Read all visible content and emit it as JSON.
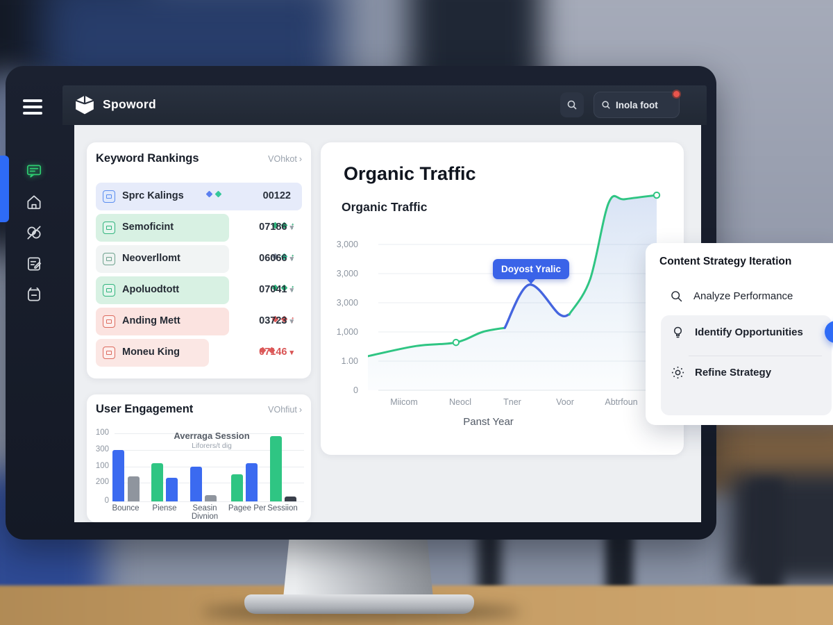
{
  "colors": {
    "accent_blue": "#2e6bf6",
    "green": "#2fc583",
    "line_highlight": "#4565df",
    "tooltip_bg": "#3a63e8",
    "red": "#de5b5b",
    "navbar": "#242b38"
  },
  "topbar": {
    "brand": "Spoword",
    "search_icon": "search-icon",
    "search_value": "Inola foot"
  },
  "sidebar": {
    "icons": [
      "chat-icon",
      "home-icon",
      "link-slash-icon",
      "document-edit-icon",
      "alarm-doc-icon"
    ]
  },
  "keyword_rankings": {
    "title": "Keyword Rankings",
    "link": "VOhkot",
    "chevron": "›",
    "rows": [
      {
        "label": "Sprc Kalings",
        "value": "00122",
        "caret": ""
      },
      {
        "label": "Semoficint",
        "value": "07186",
        "caret": "▾"
      },
      {
        "label": "Neoverllomt",
        "value": "06066",
        "caret": "▾"
      },
      {
        "label": "Apoluodtott",
        "value": "07041",
        "caret": "▾"
      },
      {
        "label": "Anding Mett",
        "value": "03723",
        "caret": "▾"
      },
      {
        "label": "Moneu King",
        "value": "07146",
        "caret": "▾"
      }
    ]
  },
  "organic": {
    "title": "Organic Traffic",
    "subtitle": "Organic Traffic",
    "tooltip": "Doyost Yralic",
    "y_ticks": [
      "3,000",
      "3,000",
      "3,000",
      "1,000",
      "1.00",
      "0"
    ],
    "x_ticks": [
      "Miicom",
      "Neocl",
      "Tner",
      "Voor",
      "Abtrfoun"
    ],
    "xlabel": "Panst Year"
  },
  "engagement": {
    "title": "User Engagement",
    "link": "VOhfiut",
    "chevron": "›",
    "annotation_line1": "Averraga Session",
    "annotation_line2": "Liforers/t dig",
    "y_ticks": [
      "100",
      "300",
      "100",
      "200",
      "0"
    ],
    "x_labels": [
      "Bounce",
      "Piense",
      "Seasin\nDivnion",
      "Pagee Per",
      "Sessiion"
    ]
  },
  "strategy": {
    "title": "Content Strategy Iteration",
    "items": [
      {
        "icon": "search-icon",
        "label": "Analyze Performance"
      },
      {
        "icon": "lightbulb-icon",
        "label": "Identify Opportunities"
      },
      {
        "icon": "sun-settings-icon",
        "label": "Refine Strategy"
      }
    ]
  },
  "chart_data": [
    {
      "type": "line",
      "title": "Organic Traffic",
      "xlabel": "Panst Year",
      "x_tick_labels": [
        "Miicom",
        "Neocl",
        "Tner",
        "Voor",
        "Abtrfoun"
      ],
      "y_tick_labels": [
        "0",
        "1.00",
        "1,000",
        "3,000",
        "3,000",
        "3,000"
      ],
      "ylim": [
        0,
        7
      ],
      "grid": true,
      "tooltip_label": "Doyost Yralic",
      "points": [
        [
          0,
          1.17
        ],
        [
          1.68,
          1.52
        ],
        [
          3.05,
          1.64
        ],
        [
          3.97,
          2.0
        ],
        [
          4.74,
          2.14
        ],
        [
          5.58,
          3.62
        ],
        [
          6.61,
          2.62
        ],
        [
          6.97,
          2.6
        ],
        [
          7.69,
          3.79
        ],
        [
          8.34,
          6.43
        ],
        [
          8.89,
          6.55
        ],
        [
          10,
          6.69
        ]
      ],
      "highlight_segment": [
        4,
        7
      ],
      "markers": [
        2,
        11
      ],
      "line_color": "#2fc583",
      "highlight_color": "#4565df"
    },
    {
      "type": "bar",
      "title": "User Engagement",
      "ylim": [
        0,
        400
      ],
      "y_tick_labels": [
        "0",
        "200",
        "100",
        "300",
        "100"
      ],
      "groups": [
        {
          "label": "Bounce",
          "bars": [
            {
              "v": 300,
              "c": "#3b6af0"
            },
            {
              "v": 145,
              "c": "#8f959e"
            }
          ]
        },
        {
          "label": "Piense",
          "bars": [
            {
              "v": 225,
              "c": "#2fc583"
            },
            {
              "v": 140,
              "c": "#3b6af0"
            }
          ]
        },
        {
          "label": "Seasin Divnion",
          "bars": [
            {
              "v": 205,
              "c": "#3b6af0"
            },
            {
              "v": 35,
              "c": "#8f959e"
            }
          ]
        },
        {
          "label": "Pagee Per",
          "bars": [
            {
              "v": 160,
              "c": "#2fc583"
            },
            {
              "v": 225,
              "c": "#3b6af0"
            }
          ]
        },
        {
          "label": "Sessiion",
          "bars": [
            {
              "v": 385,
              "c": "#2fc583"
            },
            {
              "v": 30,
              "c": "#3a3f4a"
            }
          ]
        }
      ]
    }
  ]
}
